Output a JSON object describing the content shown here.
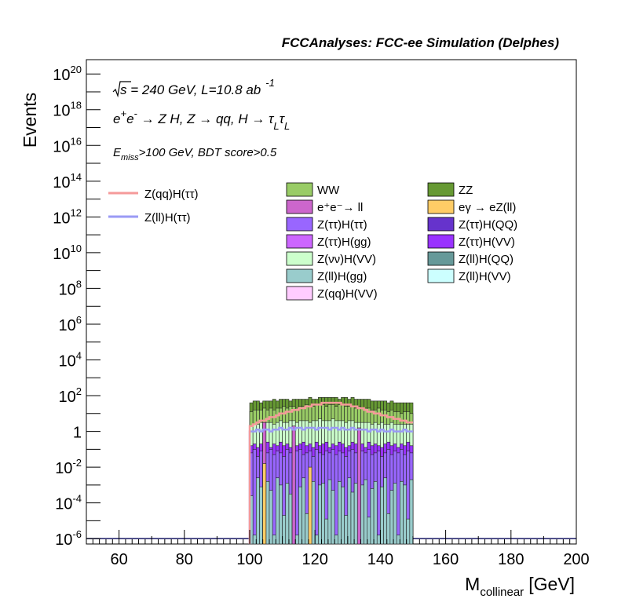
{
  "chart_data": {
    "type": "histogram-stacked",
    "title": "FCCAnalyses: FCC-ee Simulation (Delphes)",
    "xlabel": "M_collinear [GeV]",
    "xlabel_main": "M",
    "xlabel_sub": "collinear",
    "xlabel_unit": "[GeV]",
    "ylabel": "Events",
    "y_scale": "log",
    "xlim": [
      50,
      200
    ],
    "ylim_exp": [
      -6.3,
      20.8
    ],
    "x_ticks": [
      60,
      80,
      100,
      120,
      140,
      160,
      180,
      200
    ],
    "y_tick_exponents": [
      -6,
      -4,
      -2,
      0,
      2,
      4,
      6,
      8,
      10,
      12,
      14,
      16,
      18,
      20
    ],
    "annotations": {
      "line1_a": "s",
      "line1_b": " = 240 GeV, L=10.8 ab",
      "line1_sup": "-1",
      "line2_a": "e",
      "line2_b": "e",
      "line2_c": " → Z H, Z  → qq, H  → τ",
      "line2_sub1": "L",
      "line2_d": "τ",
      "line2_sub2": "L",
      "line3_a": "E",
      "line3_sub": "miss",
      "line3_b": ">100 GeV, BDT score>0.5"
    },
    "legend_lines": [
      {
        "label": "Z(qq)H(ττ)",
        "color": "#f59a9a"
      },
      {
        "label": "Z(ll)H(ττ)",
        "color": "#9a9af5"
      }
    ],
    "legend_fills": [
      {
        "label": "WW",
        "color": "#99cc66"
      },
      {
        "label": "ZZ",
        "color": "#669933"
      },
      {
        "label": "e⁺e⁻→ ll",
        "color": "#cc66cc"
      },
      {
        "label": "eγ → eZ(ll)",
        "color": "#ffcc66"
      },
      {
        "label": "Z(ττ)H(ττ)",
        "color": "#9966ff"
      },
      {
        "label": "Z(ττ)H(QQ)",
        "color": "#6633cc"
      },
      {
        "label": "Z(ττ)H(gg)",
        "color": "#cc66ff"
      },
      {
        "label": "Z(ττ)H(VV)",
        "color": "#9933ff"
      },
      {
        "label": "Z(νν)H(VV)",
        "color": "#ccffcc"
      },
      {
        "label": "Z(ll)H(QQ)",
        "color": "#669999"
      },
      {
        "label": "Z(ll)H(gg)",
        "color": "#99cccc"
      },
      {
        "label": "Z(ll)H(VV)",
        "color": "#ccffff"
      },
      {
        "label": "Z(qq)H(VV)",
        "color": "#ffccff"
      }
    ],
    "bins": {
      "x_start": 100,
      "x_end": 150,
      "width": 1
    },
    "stack_total_log10": [
      1.6,
      1.7,
      1.7,
      1.6,
      1.7,
      1.7,
      1.7,
      1.8,
      1.7,
      1.8,
      1.8,
      1.8,
      1.7,
      1.8,
      1.8,
      1.8,
      1.8,
      1.8,
      1.9,
      1.8,
      1.8,
      1.9,
      1.9,
      1.9,
      1.9,
      1.9,
      1.9,
      1.8,
      1.9,
      1.9,
      1.8,
      1.9,
      1.8,
      1.8,
      1.8,
      1.8,
      1.8,
      1.7,
      1.7,
      1.7,
      1.7,
      1.7,
      1.6,
      1.7,
      1.6,
      1.6,
      1.6,
      1.6,
      1.6,
      1.6
    ],
    "ww_top_log10": [
      1.1,
      1.2,
      1.2,
      1.2,
      1.3,
      1.2,
      1.3,
      1.2,
      1.3,
      1.3,
      1.4,
      1.3,
      1.4,
      1.4,
      1.3,
      1.4,
      1.4,
      1.5,
      1.4,
      1.4,
      1.5,
      1.5,
      1.5,
      1.4,
      1.5,
      1.5,
      1.4,
      1.5,
      1.5,
      1.4,
      1.4,
      1.4,
      1.3,
      1.4,
      1.3,
      1.3,
      1.3,
      1.2,
      1.2,
      1.3,
      1.2,
      1.2,
      1.1,
      1.2,
      1.1,
      1.1,
      1.0,
      1.1,
      1.1,
      1.0
    ],
    "znn_top_log10": [
      0.3,
      0.4,
      0.4,
      0.5,
      0.4,
      0.5,
      0.5,
      0.4,
      0.5,
      0.6,
      0.5,
      0.5,
      0.6,
      0.6,
      0.5,
      0.6,
      0.6,
      0.6,
      0.5,
      0.6,
      0.6,
      0.7,
      0.6,
      0.6,
      0.6,
      0.7,
      0.6,
      0.6,
      0.6,
      0.5,
      0.6,
      0.6,
      0.5,
      0.5,
      0.5,
      0.5,
      0.5,
      0.4,
      0.5,
      0.4,
      0.5,
      0.4,
      0.4,
      0.5,
      0.4,
      0.4,
      0.4,
      0.4,
      0.4,
      0.4
    ],
    "ztautau_top_log10": [
      -0.8,
      -0.7,
      -0.9,
      -0.7,
      -0.8,
      -0.6,
      -0.9,
      -0.7,
      -0.8,
      -0.6,
      -0.8,
      -0.7,
      -0.9,
      -0.6,
      -0.8,
      -0.7,
      -0.6,
      -0.8,
      -0.7,
      -0.9,
      -0.6,
      -0.8,
      -0.7,
      -0.6,
      -0.9,
      -0.7,
      -0.8,
      -0.6,
      -0.7,
      -0.9,
      -0.8,
      -0.6,
      -0.7,
      -0.8,
      -0.7,
      -0.9,
      -0.6,
      -0.8,
      -0.7,
      -0.8,
      -0.9,
      -0.7,
      -0.6,
      -0.8,
      -0.7,
      -0.9,
      -0.7,
      -0.8,
      -0.6,
      -0.8
    ],
    "ztautau_qq_top_log10": [
      -1.2,
      -1.0,
      -1.4,
      -1.1,
      -1.3,
      -1.2,
      -1.0,
      -1.3,
      -1.1,
      -1.2,
      -1.4,
      -1.0,
      -1.2,
      -1.3,
      -1.1,
      -1.0,
      -1.3,
      -1.2,
      -1.1,
      -1.4,
      -1.0,
      -1.2,
      -1.3,
      -1.1,
      -1.2,
      -1.0,
      -1.3,
      -1.1,
      -1.2,
      -1.4,
      -1.1,
      -1.0,
      -1.2,
      -1.3,
      -1.1,
      -1.2,
      -1.0,
      -1.3,
      -1.2,
      -1.1,
      -1.4,
      -1.2,
      -1.0,
      -1.3,
      -1.1,
      -1.2,
      -1.0,
      -1.3,
      -1.1,
      -1.2
    ],
    "zll_gg_top_log10": [
      -3.6,
      -5.8,
      -2.6,
      -3.1,
      -4.8,
      -2.8,
      -3.3,
      -5.8,
      -2.6,
      -3.0,
      -4.7,
      -2.9,
      -3.5,
      -2.7,
      -5.8,
      -3.1,
      -2.6,
      -4.6,
      -3.2,
      -2.8,
      -5.8,
      -3.0,
      -2.9,
      -4.9,
      -2.7,
      -3.3,
      -5.8,
      -2.8,
      -3.1,
      -4.7,
      -2.6,
      -3.4,
      -2.9,
      -5.8,
      -3.0,
      -2.7,
      -4.8,
      -3.2,
      -2.8,
      -5.8,
      -3.1,
      -2.6,
      -4.6,
      -3.3,
      -2.9,
      -5.8,
      -2.8,
      -3.0,
      -4.9,
      -2.7
    ],
    "zqq_htautau_line_log10": [
      0.3,
      0.4,
      0.5,
      0.6,
      0.6,
      0.7,
      0.8,
      0.8,
      0.9,
      1.0,
      1.0,
      1.1,
      1.1,
      1.2,
      1.2,
      1.3,
      1.3,
      1.4,
      1.4,
      1.5,
      1.5,
      1.5,
      1.6,
      1.6,
      1.6,
      1.6,
      1.6,
      1.6,
      1.5,
      1.5,
      1.5,
      1.4,
      1.4,
      1.3,
      1.3,
      1.2,
      1.1,
      1.1,
      1.0,
      1.0,
      0.9,
      0.9,
      0.8,
      0.8,
      0.7,
      0.7,
      0.6,
      0.6,
      0.5,
      0.5
    ],
    "zll_htautau_line_log10": [
      0.0,
      0.0,
      0.1,
      0.0,
      0.1,
      0.1,
      0.0,
      0.1,
      0.1,
      0.2,
      0.1,
      0.1,
      0.2,
      0.1,
      0.2,
      0.2,
      0.1,
      0.2,
      0.2,
      0.2,
      0.1,
      0.2,
      0.2,
      0.2,
      0.1,
      0.2,
      0.2,
      0.1,
      0.2,
      0.1,
      0.1,
      0.2,
      0.1,
      0.1,
      0.1,
      0.1,
      0.0,
      0.1,
      0.1,
      0.0,
      0.1,
      0.0,
      0.0,
      0.1,
      0.0,
      0.0,
      0.0,
      0.1,
      0.0,
      0.0
    ],
    "spikes": [
      {
        "x": 104.5,
        "log10": 0.5,
        "color": "#cc66cc"
      },
      {
        "x": 113.5,
        "log10": 0.3,
        "color": "#cc66cc"
      },
      {
        "x": 133.5,
        "log10": 0.2,
        "color": "#cc66cc"
      },
      {
        "x": 104.5,
        "log10": -1.8,
        "color": "#ffcc66"
      },
      {
        "x": 118.5,
        "log10": -2.0,
        "color": "#ffcc66"
      }
    ]
  }
}
